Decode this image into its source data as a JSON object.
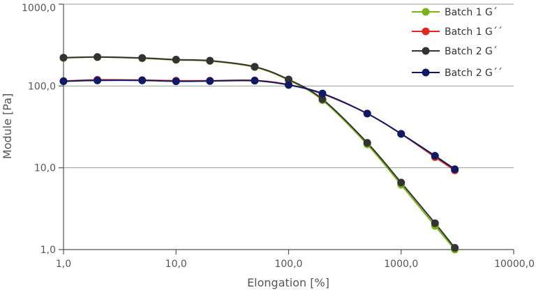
{
  "chart_data": {
    "type": "line",
    "xlabel": "Elongation [%]",
    "ylabel": "Module [Pa]",
    "x_scale": "log",
    "y_scale": "log",
    "xlim": [
      1,
      10000
    ],
    "ylim": [
      1,
      1000
    ],
    "x_ticks": [
      {
        "value": 1,
        "label": "1,0"
      },
      {
        "value": 10,
        "label": "10,0"
      },
      {
        "value": 100,
        "label": "100,0"
      },
      {
        "value": 1000,
        "label": "1000,0"
      },
      {
        "value": 10000,
        "label": "10000,0"
      }
    ],
    "y_ticks": [
      {
        "value": 1,
        "label": "1,0"
      },
      {
        "value": 10,
        "label": "10,0"
      },
      {
        "value": 100,
        "label": "100,0"
      },
      {
        "value": 1000,
        "label": "1000,0"
      }
    ],
    "grid": "horizontal",
    "legend_position": "top-right",
    "series": [
      {
        "name": "Batch 1 G´",
        "color": "#7ab317",
        "x": [
          1,
          2,
          5,
          10,
          20,
          50,
          100,
          200,
          500,
          1000,
          2000,
          3000
        ],
        "y": [
          220,
          225,
          218,
          208,
          202,
          170,
          118,
          67,
          19.3,
          6.2,
          1.95,
          1.0
        ]
      },
      {
        "name": "Batch 1 G´´",
        "color": "#e0281b",
        "x": [
          1,
          2,
          5,
          10,
          20,
          50,
          100,
          200,
          500,
          1000,
          2000,
          3000
        ],
        "y": [
          115,
          119,
          118,
          116,
          116,
          117,
          104,
          80,
          46,
          26,
          13.5,
          9.3
        ]
      },
      {
        "name": "Batch 2 G´",
        "color": "#333333",
        "x": [
          1,
          2,
          5,
          10,
          20,
          50,
          100,
          200,
          500,
          1000,
          2000,
          3000
        ],
        "y": [
          222,
          226,
          220,
          210,
          204,
          172,
          120,
          69,
          20.2,
          6.6,
          2.1,
          1.05
        ]
      },
      {
        "name": "Batch 2 G´´",
        "color": "#0f1a66",
        "x": [
          1,
          2,
          5,
          10,
          20,
          50,
          100,
          200,
          500,
          1000,
          2000,
          3000
        ],
        "y": [
          114,
          117,
          117,
          114,
          115,
          116,
          103,
          81,
          46,
          26,
          14,
          9.6
        ]
      }
    ]
  },
  "legend": {
    "items": [
      {
        "name": "Batch 1 G´",
        "color": "#7ab317"
      },
      {
        "name": "Batch 1 G´´",
        "color": "#e0281b"
      },
      {
        "name": "Batch 2 G´",
        "color": "#333333"
      },
      {
        "name": "Batch 2 G´´",
        "color": "#0f1a66"
      }
    ]
  },
  "colors": {
    "axis": "#555555",
    "grid": "#999999"
  }
}
